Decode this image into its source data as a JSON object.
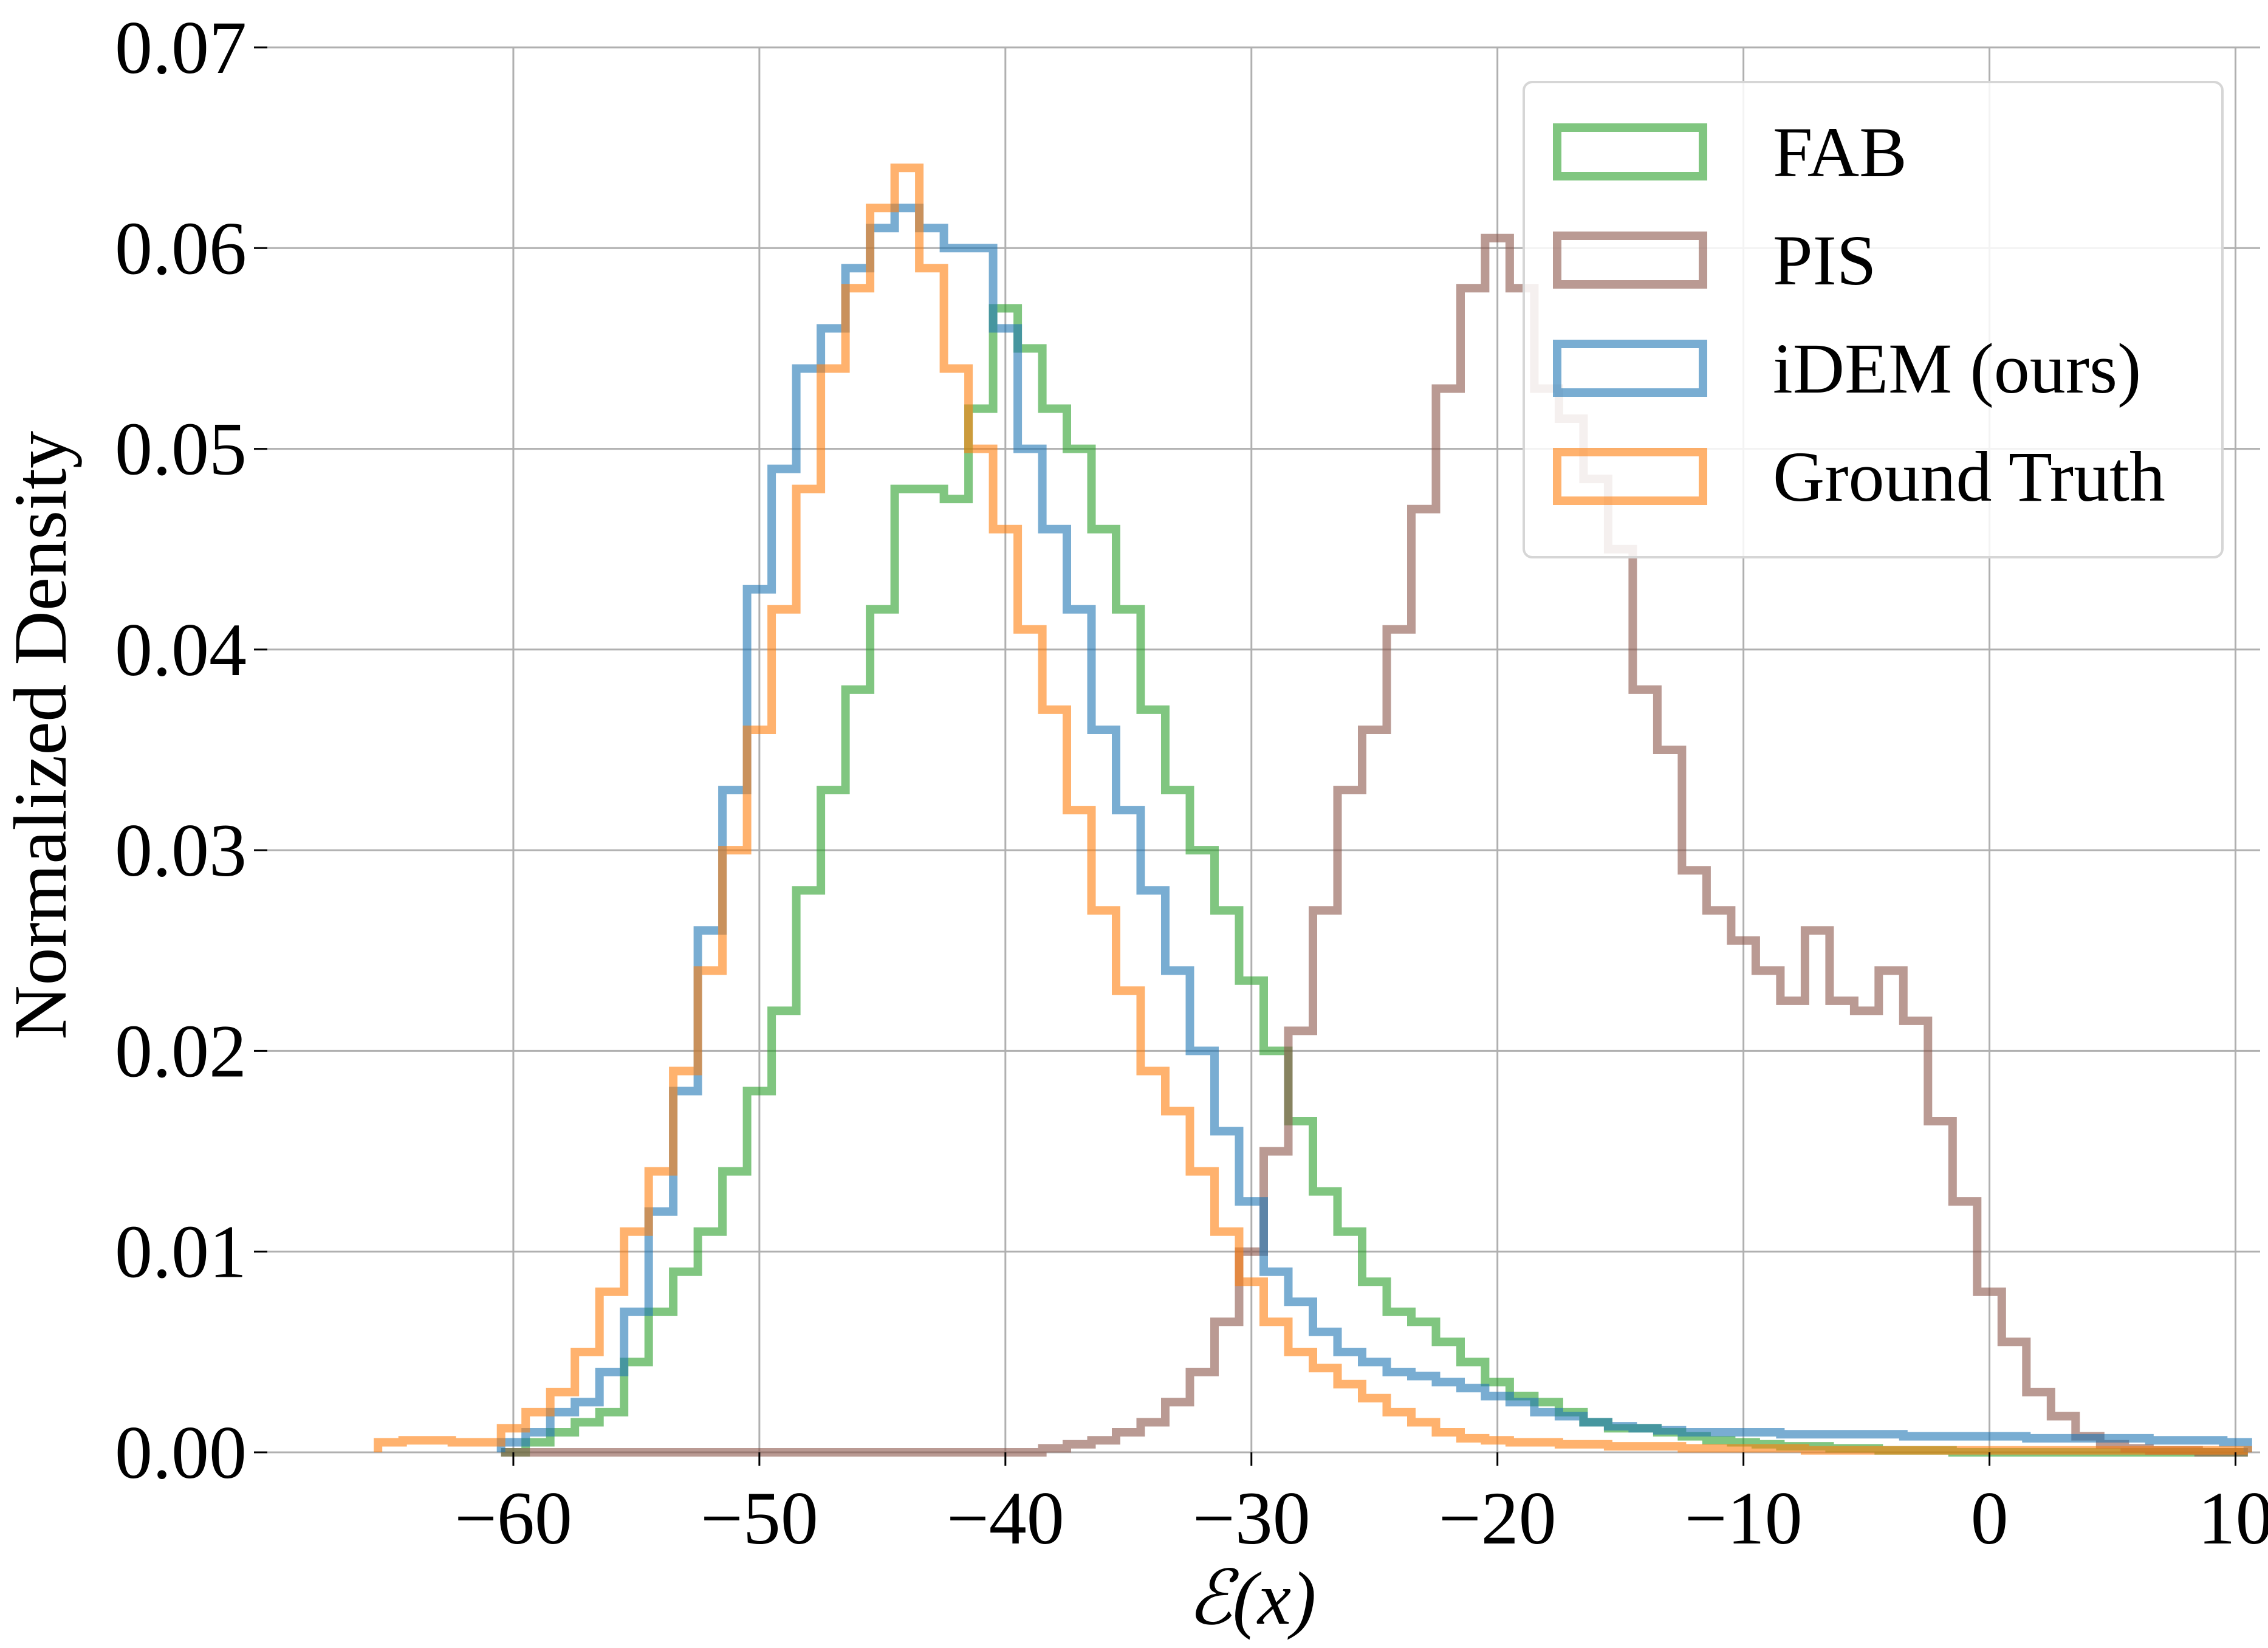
{
  "chart_data": {
    "type": "histogram",
    "title": "",
    "xlabel": "ℰ(x)",
    "ylabel": "Normalized Density",
    "xlim": [
      -70,
      11
    ],
    "ylim": [
      0,
      0.07
    ],
    "grid": true,
    "x_ticks": [
      -60,
      -50,
      -40,
      -30,
      -20,
      -10,
      0,
      10
    ],
    "x_tick_labels": [
      "−60",
      "−50",
      "−40",
      "−30",
      "−20",
      "−10",
      "0",
      "10"
    ],
    "y_ticks": [
      0.0,
      0.01,
      0.02,
      0.03,
      0.04,
      0.05,
      0.06,
      0.07
    ],
    "y_tick_labels": [
      "0.00",
      "0.01",
      "0.02",
      "0.03",
      "0.04",
      "0.05",
      "0.06",
      "0.07"
    ],
    "legend_position": "top-right",
    "series": [
      {
        "name": "FAB",
        "color": "#2ca02c",
        "x": [
          -60,
          -59,
          -58,
          -57,
          -56,
          -55,
          -54,
          -53,
          -52,
          -51,
          -50,
          -49,
          -48,
          -47,
          -46,
          -45,
          -44,
          -43,
          -42,
          -41,
          -40,
          -39,
          -38,
          -37,
          -36,
          -35,
          -34,
          -33,
          -32,
          -31,
          -30,
          -29,
          -28,
          -27,
          -26,
          -25,
          -24,
          -23,
          -22,
          -21,
          -20,
          -19,
          -18,
          -17,
          -16,
          -15,
          -14,
          -13,
          -12,
          -11,
          -10,
          -9,
          -8,
          -7,
          -6,
          -5,
          -4,
          -3,
          -2,
          -1,
          0,
          1,
          2,
          3,
          4,
          5,
          6,
          7,
          8,
          9,
          10
        ],
        "y": [
          0.0,
          0.0005,
          0.001,
          0.0015,
          0.002,
          0.0045,
          0.007,
          0.009,
          0.011,
          0.014,
          0.018,
          0.022,
          0.028,
          0.033,
          0.038,
          0.042,
          0.048,
          0.048,
          0.0475,
          0.052,
          0.057,
          0.055,
          0.052,
          0.05,
          0.046,
          0.042,
          0.037,
          0.033,
          0.03,
          0.027,
          0.0235,
          0.02,
          0.0165,
          0.013,
          0.011,
          0.0085,
          0.007,
          0.0065,
          0.0055,
          0.0045,
          0.0035,
          0.0028,
          0.0025,
          0.002,
          0.0015,
          0.0012,
          0.0012,
          0.001,
          0.0008,
          0.0006,
          0.0005,
          0.0004,
          0.0003,
          0.0003,
          0.0002,
          0.0002,
          0.0001,
          0.0001,
          0.0001,
          0.0,
          0.0,
          0.0,
          0.0,
          0.0,
          0.0,
          0.0,
          0.0,
          0.0,
          0.0,
          0.0,
          0.0
        ]
      },
      {
        "name": "PIS",
        "color": "#8c564b",
        "x": [
          -60,
          -59,
          -58,
          -57,
          -56,
          -55,
          -54,
          -53,
          -52,
          -51,
          -50,
          -49,
          -48,
          -47,
          -46,
          -45,
          -44,
          -43,
          -42,
          -41,
          -40,
          -39,
          -38,
          -37,
          -36,
          -35,
          -34,
          -33,
          -32,
          -31,
          -30,
          -29,
          -28,
          -27,
          -26,
          -25,
          -24,
          -23,
          -22,
          -21,
          -20,
          -19,
          -18,
          -17,
          -16,
          -15,
          -14,
          -13,
          -12,
          -11,
          -10,
          -9,
          -8,
          -7,
          -6,
          -5,
          -4,
          -3,
          -2,
          -1,
          0,
          1,
          2,
          3,
          4,
          5,
          6,
          7,
          8,
          9,
          10
        ],
        "y": [
          0.0,
          0.0,
          0.0,
          0.0,
          0.0,
          0.0,
          0.0,
          0.0,
          0.0,
          0.0,
          0.0,
          0.0,
          0.0,
          0.0,
          0.0,
          0.0,
          0.0,
          0.0,
          0.0,
          0.0,
          0.0,
          0.0,
          0.0002,
          0.0004,
          0.0006,
          0.001,
          0.0015,
          0.0025,
          0.004,
          0.0065,
          0.01,
          0.015,
          0.021,
          0.027,
          0.033,
          0.036,
          0.041,
          0.047,
          0.053,
          0.058,
          0.0605,
          0.058,
          0.053,
          0.0515,
          0.0485,
          0.045,
          0.038,
          0.035,
          0.029,
          0.027,
          0.0255,
          0.024,
          0.0225,
          0.026,
          0.0225,
          0.022,
          0.024,
          0.0215,
          0.0165,
          0.0125,
          0.008,
          0.0055,
          0.003,
          0.0018,
          0.0008,
          0.0004,
          0.0002,
          0.0001,
          0.0001,
          0.0,
          0.0
        ]
      },
      {
        "name": "iDEM (ours)",
        "color": "#1f77b4",
        "x": [
          -60,
          -59,
          -58,
          -57,
          -56,
          -55,
          -54,
          -53,
          -52,
          -51,
          -50,
          -49,
          -48,
          -47,
          -46,
          -45,
          -44,
          -43,
          -42,
          -41,
          -40,
          -39,
          -38,
          -37,
          -36,
          -35,
          -34,
          -33,
          -32,
          -31,
          -30,
          -29,
          -28,
          -27,
          -26,
          -25,
          -24,
          -23,
          -22,
          -21,
          -20,
          -19,
          -18,
          -17,
          -16,
          -15,
          -14,
          -13,
          -12,
          -11,
          -10,
          -9,
          -8,
          -7,
          -6,
          -5,
          -4,
          -3,
          -2,
          -1,
          0,
          1,
          2,
          3,
          4,
          5,
          6,
          7,
          8,
          9,
          10
        ],
        "y": [
          0.0005,
          0.001,
          0.002,
          0.0025,
          0.004,
          0.007,
          0.012,
          0.018,
          0.026,
          0.033,
          0.043,
          0.049,
          0.054,
          0.056,
          0.059,
          0.061,
          0.062,
          0.061,
          0.06,
          0.06,
          0.056,
          0.05,
          0.046,
          0.042,
          0.036,
          0.032,
          0.028,
          0.024,
          0.02,
          0.016,
          0.0125,
          0.009,
          0.0075,
          0.006,
          0.005,
          0.0045,
          0.004,
          0.0038,
          0.0035,
          0.0032,
          0.0028,
          0.0025,
          0.002,
          0.0018,
          0.0015,
          0.0013,
          0.0012,
          0.0011,
          0.001,
          0.001,
          0.001,
          0.001,
          0.0009,
          0.0009,
          0.0009,
          0.0009,
          0.0009,
          0.0008,
          0.0008,
          0.0008,
          0.0008,
          0.0008,
          0.0007,
          0.0007,
          0.0007,
          0.0007,
          0.0007,
          0.0006,
          0.0006,
          0.0006,
          0.0005
        ]
      },
      {
        "name": "Ground Truth",
        "color": "#ff7f0e",
        "x": [
          -65,
          -64,
          -63,
          -62,
          -61,
          -60,
          -59,
          -58,
          -57,
          -56,
          -55,
          -54,
          -53,
          -52,
          -51,
          -50,
          -49,
          -48,
          -47,
          -46,
          -45,
          -44,
          -43,
          -42,
          -41,
          -40,
          -39,
          -38,
          -37,
          -36,
          -35,
          -34,
          -33,
          -32,
          -31,
          -30,
          -29,
          -28,
          -27,
          -26,
          -25,
          -24,
          -23,
          -22,
          -21,
          -20,
          -19,
          -18,
          -17,
          -16,
          -15,
          -14,
          -13,
          -12,
          -11,
          -10,
          -9,
          -8,
          -7,
          -6,
          -5,
          -4,
          -3,
          -2,
          -1,
          0,
          1,
          2,
          3,
          4,
          5,
          6,
          7,
          8,
          9,
          10
        ],
        "y": [
          0.0005,
          0.0006,
          0.0006,
          0.0005,
          0.0005,
          0.0012,
          0.002,
          0.003,
          0.005,
          0.008,
          0.011,
          0.014,
          0.019,
          0.024,
          0.03,
          0.036,
          0.042,
          0.048,
          0.054,
          0.058,
          0.062,
          0.064,
          0.059,
          0.054,
          0.05,
          0.046,
          0.041,
          0.037,
          0.032,
          0.027,
          0.023,
          0.019,
          0.017,
          0.014,
          0.011,
          0.0085,
          0.0065,
          0.005,
          0.0042,
          0.0034,
          0.0027,
          0.002,
          0.0015,
          0.001,
          0.0007,
          0.0006,
          0.0005,
          0.0005,
          0.0004,
          0.0004,
          0.0003,
          0.0003,
          0.0003,
          0.0002,
          0.0002,
          0.0002,
          0.0002,
          0.0002,
          0.0001,
          0.0001,
          0.0001,
          0.0001,
          0.0001,
          0.0001,
          0.0001,
          0.0001,
          0.0001,
          0.0001,
          0.0001,
          0.0001,
          0.0001,
          0.0001,
          0.0001,
          0.0001,
          0.0001,
          0.0001
        ]
      }
    ]
  }
}
